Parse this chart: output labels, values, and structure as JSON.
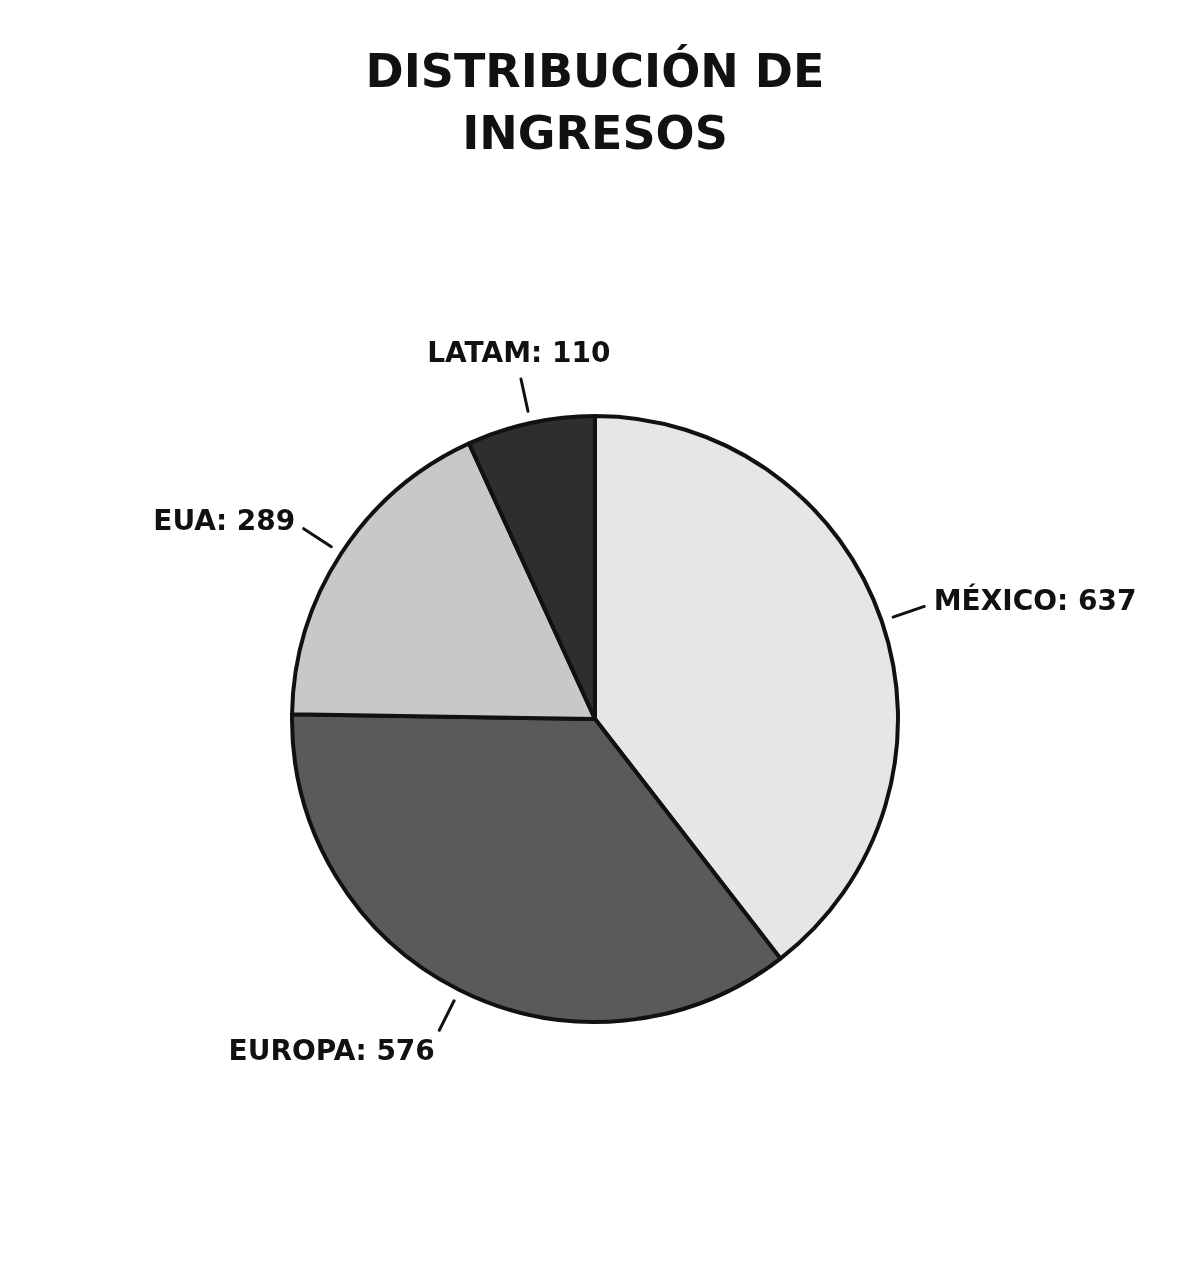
{
  "chart_data": {
    "type": "pie",
    "title": "DISTRIBUCIÓN DE INGRESOS",
    "categories": [
      "MÉXICO",
      "EUROPA",
      "EUA",
      "LATAM"
    ],
    "values": [
      637,
      576,
      289,
      110
    ],
    "colors": [
      "#e6e6e6",
      "#5a5a5a",
      "#c8c8c8",
      "#2e2e2e"
    ],
    "value_labels": [
      ": 637",
      ": 576",
      ": 289",
      ": 110"
    ],
    "legend": false
  }
}
